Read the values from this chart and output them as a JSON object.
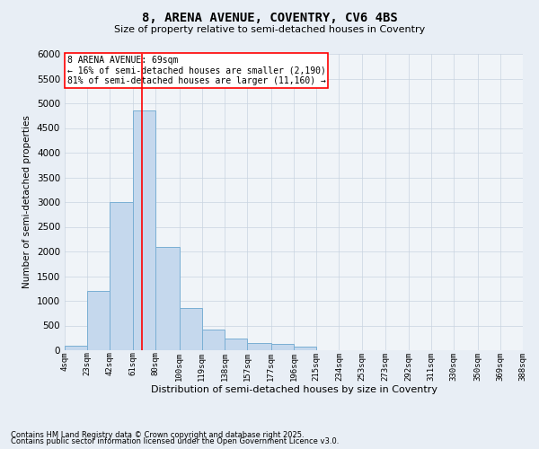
{
  "title": "8, ARENA AVENUE, COVENTRY, CV6 4BS",
  "subtitle": "Size of property relative to semi-detached houses in Coventry",
  "xlabel": "Distribution of semi-detached houses by size in Coventry",
  "ylabel": "Number of semi-detached properties",
  "bin_labels": [
    "4sqm",
    "23sqm",
    "42sqm",
    "61sqm",
    "80sqm",
    "100sqm",
    "119sqm",
    "138sqm",
    "157sqm",
    "177sqm",
    "196sqm",
    "215sqm",
    "234sqm",
    "253sqm",
    "273sqm",
    "292sqm",
    "311sqm",
    "330sqm",
    "350sqm",
    "369sqm",
    "388sqm"
  ],
  "bin_edges": [
    4,
    23,
    42,
    61,
    80,
    100,
    119,
    138,
    157,
    177,
    196,
    215,
    234,
    253,
    273,
    292,
    311,
    330,
    350,
    369,
    388
  ],
  "bar_heights": [
    100,
    1200,
    3000,
    4850,
    2100,
    850,
    420,
    230,
    140,
    120,
    75,
    0,
    0,
    0,
    0,
    0,
    0,
    0,
    0,
    0
  ],
  "bar_color": "#c5d8ed",
  "bar_edge_color": "#7aafd4",
  "red_line_x": 69,
  "red_line_label": "8 ARENA AVENUE: 69sqm",
  "annotation_smaller": "← 16% of semi-detached houses are smaller (2,190)",
  "annotation_larger": "81% of semi-detached houses are larger (11,160) →",
  "ylim": [
    0,
    6000
  ],
  "yticks": [
    0,
    500,
    1000,
    1500,
    2000,
    2500,
    3000,
    3500,
    4000,
    4500,
    5000,
    5500,
    6000
  ],
  "footer1": "Contains HM Land Registry data © Crown copyright and database right 2025.",
  "footer2": "Contains public sector information licensed under the Open Government Licence v3.0.",
  "bg_color": "#e8eef5",
  "plot_bg_color": "#f0f4f8",
  "grid_color": "#c8d4e0"
}
